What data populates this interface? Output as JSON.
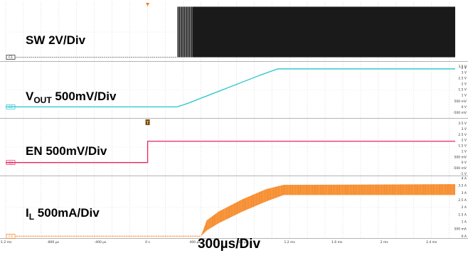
{
  "chart_data": {
    "type": "line",
    "title": "",
    "xlabel": "300µs/Div",
    "x_unit": "s",
    "xlim": [
      -0.0012,
      0.0026
    ],
    "x_ticks": [
      "-1.2 ms",
      "-800 µs",
      "-400 µs",
      "0 s",
      "400 µs",
      "800 µs",
      "1.2 ms",
      "1.6 ms",
      "2 ms",
      "2.4 ms"
    ],
    "x_tick_values": [
      -0.0012,
      -0.0008,
      -0.0004,
      0,
      0.0004,
      0.0008,
      0.0012,
      0.0016,
      0.002,
      0.0024
    ],
    "trigger_marker": "T",
    "grid": true,
    "channels": [
      {
        "id": "C1",
        "name_main": "SW 2V/Div",
        "name_sub": "",
        "name_tail": "",
        "color": "#1a1a1a",
        "style": "switching",
        "unit": "V",
        "ylim": [
          -0.6,
          10.2
        ],
        "right_ticks": [
          "-2 V"
        ],
        "right_tick_values": [
          -2
        ],
        "low": 0,
        "high": 9.6,
        "switch_start": 0.00025,
        "t": [
          -0.0012,
          0.00025,
          0.0026
        ],
        "v": [
          0,
          0,
          9.6
        ]
      },
      {
        "id": "C2",
        "name_main": "V",
        "name_sub": "OUT",
        "name_tail": " 500mV/Div",
        "color": "#22c4cc",
        "style": "line",
        "unit": "V",
        "ylim": [
          -0.9,
          3.85
        ],
        "right_ticks": [
          "3.5 V",
          "3 V",
          "2.5 V",
          "2 V",
          "1.5 V",
          "1 V",
          "500 mV",
          "0 V",
          "-500 mV"
        ],
        "right_tick_values": [
          3.5,
          3.0,
          2.5,
          2.0,
          1.5,
          1.0,
          0.5,
          0.0,
          -0.5
        ],
        "t": [
          -0.0012,
          0.00025,
          0.00035,
          0.00055,
          0.00075,
          0.00095,
          0.0011,
          0.00115,
          0.0026
        ],
        "v": [
          0,
          0,
          0.35,
          1.15,
          1.95,
          2.75,
          3.3,
          3.3,
          3.3
        ]
      },
      {
        "id": "C3",
        "name_main": "EN 500mV/Div",
        "name_sub": "",
        "name_tail": "",
        "color": "#e8245c",
        "style": "line",
        "unit": "V",
        "ylim": [
          -1.1,
          3.85
        ],
        "right_ticks": [
          "3.5 V",
          "3 V",
          "2.5 V",
          "2 V",
          "1.5 V",
          "1 V",
          "500 mV",
          "0 V",
          "-500 mV",
          "-1 V"
        ],
        "right_tick_values": [
          3.5,
          3.0,
          2.5,
          2.0,
          1.5,
          1.0,
          0.5,
          0.0,
          -0.5,
          -1.0
        ],
        "t": [
          -0.0012,
          0.0,
          0.0,
          0.0026
        ],
        "v": [
          0,
          0,
          1.9,
          1.9
        ]
      },
      {
        "id": "C4",
        "name_main": "I",
        "name_sub": "L",
        "name_tail": " 500mA/Div",
        "color": "#f5841f",
        "style": "ripple",
        "unit": "A",
        "ylim": [
          -0.08,
          4.1
        ],
        "right_ticks": [
          "4 A",
          "3.5 A",
          "3 A",
          "2.5 A",
          "2 A",
          "1.5 A",
          "1 A",
          "500 mA",
          "0 A"
        ],
        "right_tick_values": [
          4.0,
          3.5,
          3.0,
          2.5,
          2.0,
          1.5,
          1.0,
          0.5,
          0.0
        ],
        "t": [
          -0.0012,
          0.00045,
          0.0005,
          0.0006,
          0.0008,
          0.001,
          0.00115,
          0.0026
        ],
        "v_low": [
          0,
          0,
          0.4,
          0.9,
          1.7,
          2.4,
          2.85,
          2.85
        ],
        "v_high": [
          0,
          0,
          1.1,
          1.7,
          2.55,
          3.25,
          3.55,
          3.6
        ]
      }
    ]
  }
}
